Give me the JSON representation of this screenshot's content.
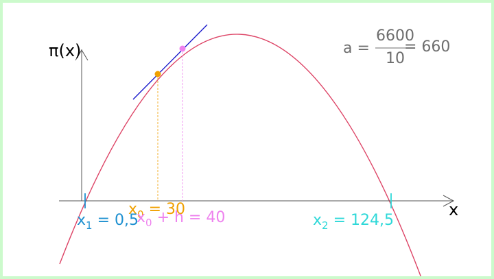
{
  "axes": {
    "y_label": "π(x)",
    "x_label": "x"
  },
  "formula": {
    "prefix": "a =",
    "numerator": "6600",
    "denominator": "10",
    "result": "= 660",
    "color": "#6e6e6e"
  },
  "points": {
    "x1": {
      "name": "x",
      "sub": "1",
      "rest": " = 0,5",
      "color": "#1e90d0"
    },
    "x0": {
      "name": "x",
      "sub": "0",
      "rest": " = 30",
      "color": "#f0a000"
    },
    "x0h": {
      "name": "x",
      "sub": "0",
      "rest": " + h = 40",
      "color": "#ee82ee"
    },
    "x2": {
      "name": "x",
      "sub": "2",
      "rest": " = 124,5",
      "color": "#2ed8d8"
    }
  },
  "colors": {
    "curve": "#dd4466",
    "tangent": "#1a1acc",
    "axis": "#555555",
    "frame": "#ccfacc"
  }
}
